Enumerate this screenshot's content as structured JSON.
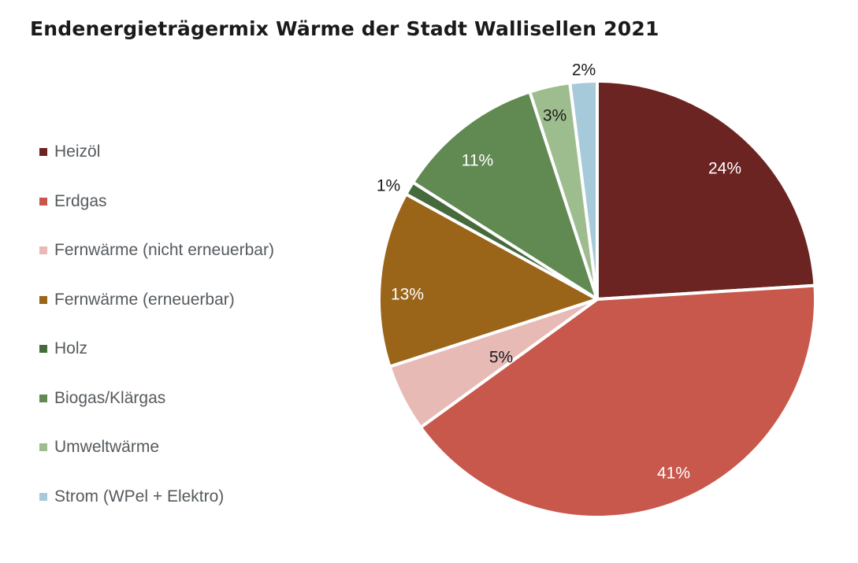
{
  "chart_data": {
    "type": "pie",
    "title": "Endenergieträgermix Wärme der Stadt Wallisellen 2021",
    "legend_position": "left",
    "start": "top",
    "direction": "clockwise",
    "slices": [
      {
        "label": "Heizöl",
        "value": 24,
        "data_label": "24%",
        "color": "#6b2421",
        "label_color": "#ffffff",
        "label_outside": false
      },
      {
        "label": "Erdgas",
        "value": 41,
        "data_label": "41%",
        "color": "#c8574c",
        "label_color": "#ffffff",
        "label_outside": false
      },
      {
        "label": "Fernwärme (nicht erneuerbar)",
        "value": 5,
        "data_label": "5%",
        "color": "#e8bab5",
        "label_color": "#1a1a1a",
        "label_outside": false
      },
      {
        "label": "Fernwärme (erneuerbar)",
        "value": 13,
        "data_label": "13%",
        "color": "#9a6419",
        "label_color": "#ffffff",
        "label_outside": false
      },
      {
        "label": "Holz",
        "value": 1,
        "data_label": "1%",
        "color": "#466a3c",
        "label_color": "#1a1a1a",
        "label_outside": true
      },
      {
        "label": "Biogas/Klärgas",
        "value": 11,
        "data_label": "11%",
        "color": "#618a52",
        "label_color": "#ffffff",
        "label_outside": false
      },
      {
        "label": "Umweltwärme",
        "value": 3,
        "data_label": "3%",
        "color": "#9ebd8e",
        "label_color": "#1a1a1a",
        "label_outside": false
      },
      {
        "label": "Strom (WPel + Elektro)",
        "value": 2,
        "data_label": "2%",
        "color": "#a6cad9",
        "label_color": "#1a1a1a",
        "label_outside": true
      }
    ]
  }
}
